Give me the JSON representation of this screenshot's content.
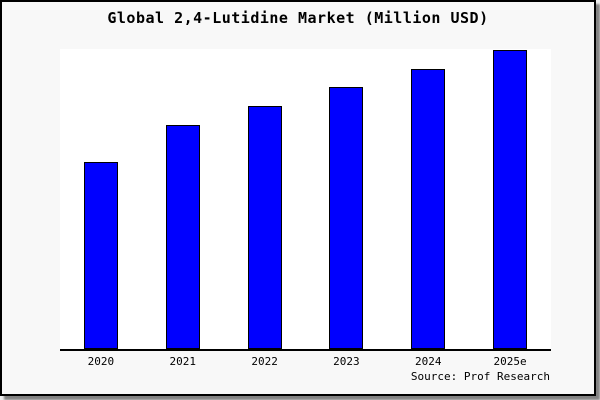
{
  "title": "Global 2,4-Lutidine Market (Million USD)",
  "source_note": "Source: Prof Research",
  "colors": {
    "bar_fill": "#0000ff",
    "bar_edge": "#000000",
    "plot_background": "#ffffff",
    "frame_background": "#f8f8f8",
    "frame_border": "#000000"
  },
  "chart_data": {
    "type": "bar",
    "title": "Global 2,4-Lutidine Market (Million USD)",
    "categories": [
      "2020",
      "2021",
      "2022",
      "2023",
      "2024",
      "2025e"
    ],
    "values": [
      50,
      60,
      65,
      70,
      75,
      80
    ],
    "series_unit": "Million USD",
    "xlabel": "",
    "ylabel": "",
    "ylim": [
      0,
      80.3
    ],
    "value_axis_visible": false,
    "gridlines": false,
    "legend": "none",
    "annotation": "Source: Prof Research",
    "bar_color": "#0000ff"
  }
}
